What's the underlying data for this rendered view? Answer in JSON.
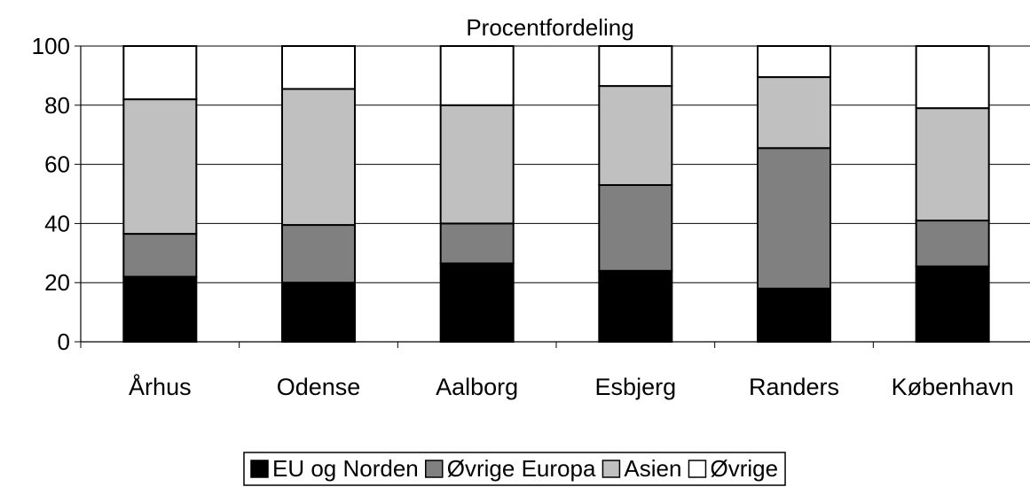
{
  "chart_data": {
    "type": "bar",
    "stacked": true,
    "title": "",
    "subtitle": "Procentfordeling",
    "xlabel": "",
    "ylabel": "",
    "ylim": [
      0,
      100
    ],
    "yticks": [
      "0",
      "20",
      "40",
      "60",
      "80",
      "100"
    ],
    "categories": [
      "Århus",
      "Odense",
      "Aalborg",
      "Esbjerg",
      "Randers",
      "København"
    ],
    "series": [
      {
        "name": "EU og Norden",
        "color": "#000000",
        "values": [
          22,
          20,
          26.5,
          24,
          18,
          25.5
        ]
      },
      {
        "name": "Øvrige Europa",
        "color": "#808080",
        "values": [
          14.5,
          19.5,
          13.5,
          29,
          47.5,
          15.5
        ]
      },
      {
        "name": "Asien",
        "color": "#c0c0c0",
        "values": [
          45.5,
          46,
          40,
          33.5,
          24,
          38
        ]
      },
      {
        "name": "Øvrige",
        "color": "#ffffff",
        "values": [
          18,
          14.5,
          20,
          13.5,
          10.5,
          21
        ]
      }
    ],
    "grid": true,
    "legend_position": "bottom"
  }
}
